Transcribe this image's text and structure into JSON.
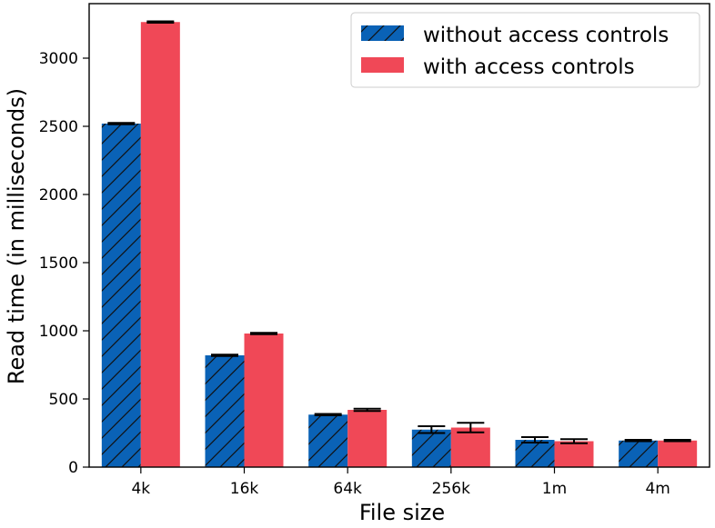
{
  "chart_data": {
    "type": "bar",
    "title": "",
    "xlabel": "File size",
    "ylabel": "Read time (in milliseconds)",
    "categories": [
      "4k",
      "16k",
      "64k",
      "256k",
      "1m",
      "4m"
    ],
    "ylim": [
      0,
      3400
    ],
    "yticks": [
      0,
      500,
      1000,
      1500,
      2000,
      2500,
      3000
    ],
    "grid": false,
    "legend_position": "top-right",
    "series": [
      {
        "name": "without access controls",
        "values": [
          2520,
          820,
          385,
          275,
          200,
          195
        ],
        "errors": [
          5,
          5,
          5,
          25,
          20,
          5
        ],
        "color": "#0a62b6",
        "hatch": "diagonal"
      },
      {
        "name": "with access controls",
        "values": [
          3265,
          980,
          420,
          290,
          190,
          195
        ],
        "errors": [
          5,
          5,
          8,
          35,
          15,
          5
        ],
        "color": "#f04857",
        "hatch": "none"
      }
    ]
  }
}
